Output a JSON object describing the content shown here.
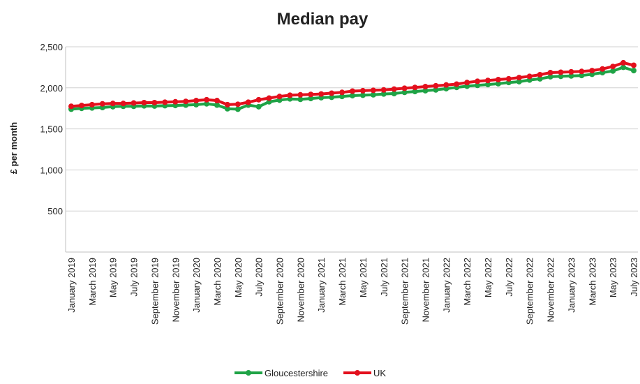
{
  "chart_data": {
    "type": "line",
    "title": "Median pay",
    "xlabel": "",
    "ylabel": "£ per month",
    "ylim": [
      0,
      2500
    ],
    "yticks": [
      500,
      1000,
      1500,
      2000,
      2500
    ],
    "ytick_labels": [
      "500",
      "1,000",
      "1,500",
      "2,000",
      "2,500"
    ],
    "grid": "horizontal",
    "legend_position": "bottom",
    "x": [
      "January 2019",
      "February 2019",
      "March 2019",
      "April 2019",
      "May 2019",
      "June 2019",
      "July 2019",
      "August 2019",
      "September 2019",
      "October 2019",
      "November 2019",
      "December 2019",
      "January 2020",
      "February 2020",
      "March 2020",
      "April 2020",
      "May 2020",
      "June 2020",
      "July 2020",
      "August 2020",
      "September 2020",
      "October 2020",
      "November 2020",
      "December 2020",
      "January 2021",
      "February 2021",
      "March 2021",
      "April 2021",
      "May 2021",
      "June 2021",
      "July 2021",
      "August 2021",
      "September 2021",
      "October 2021",
      "November 2021",
      "December 2021",
      "January 2022",
      "February 2022",
      "March 2022",
      "April 2022",
      "May 2022",
      "June 2022",
      "July 2022",
      "August 2022",
      "September 2022",
      "October 2022",
      "November 2022",
      "December 2022",
      "January 2023",
      "February 2023",
      "March 2023",
      "April 2023",
      "May 2023",
      "June 2023",
      "July 2023"
    ],
    "x_tick_labels": [
      "January 2019",
      "March 2019",
      "May 2019",
      "July 2019",
      "September 2019",
      "November 2019",
      "January 2020",
      "March 2020",
      "May 2020",
      "July 2020",
      "September 2020",
      "November 2020",
      "January 2021",
      "March 2021",
      "May 2021",
      "July 2021",
      "September 2021",
      "November 2021",
      "January 2022",
      "March 2022",
      "May 2022",
      "July 2022",
      "September 2022",
      "November 2022",
      "January 2023",
      "March 2023",
      "May 2023",
      "July 2023"
    ],
    "series": [
      {
        "name": "Gloucestershire",
        "color": "#1fa346",
        "values": [
          1740,
          1750,
          1755,
          1760,
          1770,
          1775,
          1775,
          1780,
          1778,
          1782,
          1785,
          1790,
          1795,
          1805,
          1790,
          1745,
          1740,
          1790,
          1770,
          1830,
          1850,
          1865,
          1860,
          1870,
          1880,
          1885,
          1895,
          1905,
          1910,
          1915,
          1925,
          1930,
          1945,
          1955,
          1965,
          1975,
          1990,
          2005,
          2020,
          2030,
          2040,
          2050,
          2065,
          2075,
          2095,
          2110,
          2135,
          2140,
          2145,
          2150,
          2165,
          2185,
          2205,
          2250,
          2210
        ]
      },
      {
        "name": "UK",
        "color": "#e3101d",
        "values": [
          1775,
          1785,
          1795,
          1805,
          1810,
          1810,
          1815,
          1820,
          1820,
          1825,
          1830,
          1835,
          1845,
          1855,
          1845,
          1795,
          1800,
          1825,
          1855,
          1875,
          1895,
          1910,
          1915,
          1920,
          1925,
          1935,
          1945,
          1960,
          1965,
          1970,
          1975,
          1985,
          1995,
          2005,
          2015,
          2025,
          2035,
          2045,
          2065,
          2080,
          2090,
          2100,
          2110,
          2125,
          2140,
          2160,
          2185,
          2190,
          2195,
          2200,
          2210,
          2230,
          2260,
          2305,
          2275
        ]
      }
    ]
  }
}
